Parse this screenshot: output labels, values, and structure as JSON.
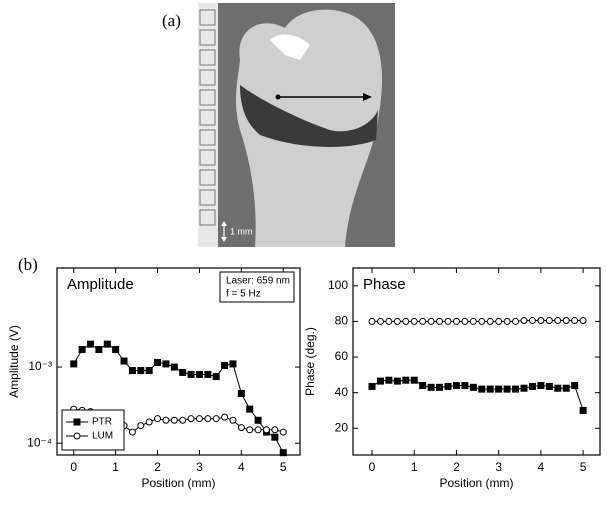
{
  "figure": {
    "panel_a": "(a)",
    "panel_b": "(b)",
    "scale_label": "1 mm"
  },
  "chart_data": [
    {
      "type": "line",
      "title": "Amplitude",
      "x_label": "Position (mm)",
      "y_label": "Amplitude (V)",
      "annotation": [
        "Laser: 659 nm",
        "f = 5 Hz"
      ],
      "x": [
        0,
        0.2,
        0.4,
        0.6,
        0.8,
        1.0,
        1.2,
        1.4,
        1.6,
        1.8,
        2.0,
        2.2,
        2.4,
        2.6,
        2.8,
        3.0,
        3.2,
        3.4,
        3.6,
        3.8,
        4.0,
        4.2,
        4.4,
        4.6,
        4.8,
        5.0
      ],
      "series": [
        {
          "name": "PTR",
          "color": "#000000",
          "marker": "square-filled",
          "values": [
            0.0011,
            0.0017,
            0.002,
            0.0017,
            0.002,
            0.0017,
            0.0012,
            0.0009,
            0.0009,
            0.0009,
            0.00115,
            0.0011,
            0.001,
            0.00085,
            0.0008,
            0.0008,
            0.0008,
            0.00075,
            0.00105,
            0.0011,
            0.00045,
            0.00028,
            0.0002,
            0.00014,
            0.00012,
            7.5e-05
          ]
        },
        {
          "name": "LUM",
          "color": "#000000",
          "marker": "circle-open",
          "values": [
            0.00028,
            0.00027,
            0.00026,
            0.00024,
            0.00022,
            0.0002,
            0.00017,
            0.00014,
            0.00017,
            0.00019,
            0.00021,
            0.0002,
            0.0002,
            0.0002,
            0.00021,
            0.00021,
            0.00021,
            0.00021,
            0.00022,
            0.0002,
            0.00016,
            0.00015,
            0.00015,
            0.00015,
            0.00015,
            0.00014
          ]
        }
      ],
      "xlim": [
        -0.4,
        5.4
      ],
      "xticks": [
        0,
        1,
        2,
        3,
        4,
        5
      ],
      "ylog": true,
      "ylim": [
        7e-05,
        0.02
      ],
      "yticks": [
        {
          "value": 0.0001,
          "label": "10⁻⁴"
        },
        {
          "value": 0.001,
          "label": "10⁻³"
        }
      ],
      "legend": "lower left"
    },
    {
      "type": "line",
      "title": "Phase",
      "x_label": "Position (mm)",
      "y_label": "Phase (deg.)",
      "x": [
        0,
        0.2,
        0.4,
        0.6,
        0.8,
        1.0,
        1.2,
        1.4,
        1.6,
        1.8,
        2.0,
        2.2,
        2.4,
        2.6,
        2.8,
        3.0,
        3.2,
        3.4,
        3.6,
        3.8,
        4.0,
        4.2,
        4.4,
        4.6,
        4.8,
        5.0
      ],
      "series": [
        {
          "name": "PTR",
          "color": "#000000",
          "marker": "square-filled",
          "values": [
            43.5,
            46.5,
            47,
            46.5,
            47,
            47,
            44,
            43,
            43,
            43.5,
            44,
            44,
            43,
            42,
            42,
            42,
            42,
            42,
            42.5,
            43.5,
            44,
            43.5,
            42.5,
            42.5,
            44,
            30
          ]
        },
        {
          "name": "LUM",
          "color": "#000000",
          "marker": "circle-open",
          "values": [
            80,
            80,
            80,
            80,
            80,
            80,
            80,
            80,
            80,
            80,
            80,
            80,
            80,
            80,
            80,
            80,
            80,
            80,
            80.5,
            80.5,
            80.5,
            80.5,
            80.5,
            80.5,
            80.5,
            80.5
          ]
        }
      ],
      "xlim": [
        -0.45,
        5.4
      ],
      "xticks": [
        0,
        1,
        2,
        3,
        4,
        5
      ],
      "ylim": [
        5,
        110
      ],
      "yticks": [
        20,
        40,
        60,
        80,
        100
      ]
    }
  ]
}
